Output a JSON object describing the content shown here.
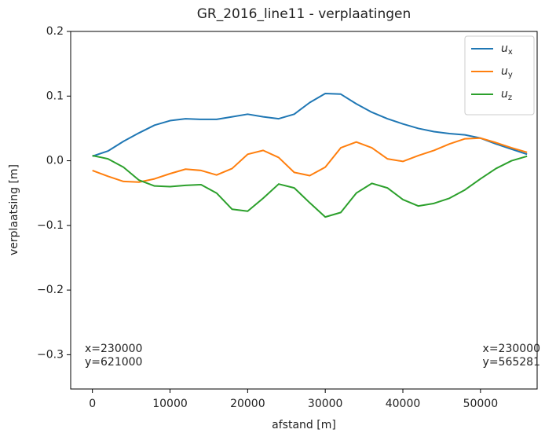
{
  "chart_data": {
    "type": "line",
    "title": "GR_2016_line11 - verplaatingen",
    "xlabel": "afstand [m]",
    "ylabel": "verplaatsing [m]",
    "x": [
      0,
      2000,
      4000,
      6000,
      8000,
      10000,
      12000,
      14000,
      16000,
      18000,
      20000,
      22000,
      24000,
      26000,
      28000,
      30000,
      32000,
      34000,
      36000,
      38000,
      40000,
      42000,
      44000,
      46000,
      48000,
      50000,
      52000,
      54000,
      56000
    ],
    "series": [
      {
        "name": "ux",
        "color": "#1f77b4",
        "values": [
          0.007,
          0.015,
          0.03,
          0.043,
          0.055,
          0.062,
          0.065,
          0.064,
          0.064,
          0.068,
          0.072,
          0.068,
          0.065,
          0.072,
          0.09,
          0.104,
          0.103,
          0.088,
          0.075,
          0.065,
          0.057,
          0.05,
          0.045,
          0.042,
          0.04,
          0.035,
          0.026,
          0.018,
          0.01
        ]
      },
      {
        "name": "uy",
        "color": "#ff7f0e",
        "values": [
          -0.015,
          -0.024,
          -0.032,
          -0.033,
          -0.028,
          -0.02,
          -0.013,
          -0.015,
          -0.022,
          -0.012,
          0.01,
          0.016,
          0.005,
          -0.018,
          -0.023,
          -0.01,
          0.02,
          0.029,
          0.02,
          0.003,
          -0.001,
          0.008,
          0.016,
          0.026,
          0.034,
          0.035,
          0.028,
          0.02,
          0.013
        ]
      },
      {
        "name": "uz",
        "color": "#2ca02c",
        "values": [
          0.008,
          0.003,
          -0.01,
          -0.03,
          -0.039,
          -0.04,
          -0.038,
          -0.037,
          -0.05,
          -0.075,
          -0.078,
          -0.058,
          -0.036,
          -0.042,
          -0.065,
          -0.087,
          -0.08,
          -0.05,
          -0.035,
          -0.042,
          -0.06,
          -0.07,
          -0.066,
          -0.058,
          -0.045,
          -0.028,
          -0.012,
          0.0,
          0.007
        ]
      }
    ],
    "xlim": [
      -2800,
      57300
    ],
    "ylim": [
      -0.353,
      0.2
    ],
    "xticks": [
      0,
      10000,
      20000,
      30000,
      40000,
      50000
    ],
    "yticks": [
      0.2,
      0.1,
      {
        "value": 0,
        "label": "0.0"
      },
      {
        "value": -0.1,
        "label": "−0.1"
      },
      {
        "value": -0.2,
        "label": "−0.2"
      },
      {
        "value": -0.3,
        "label": "−0.3"
      }
    ],
    "legend": "upper right",
    "annotations": [
      {
        "lines": [
          "x=230000",
          "y=621000"
        ]
      },
      {
        "lines": [
          "x=230000",
          "y=565281"
        ]
      }
    ]
  }
}
